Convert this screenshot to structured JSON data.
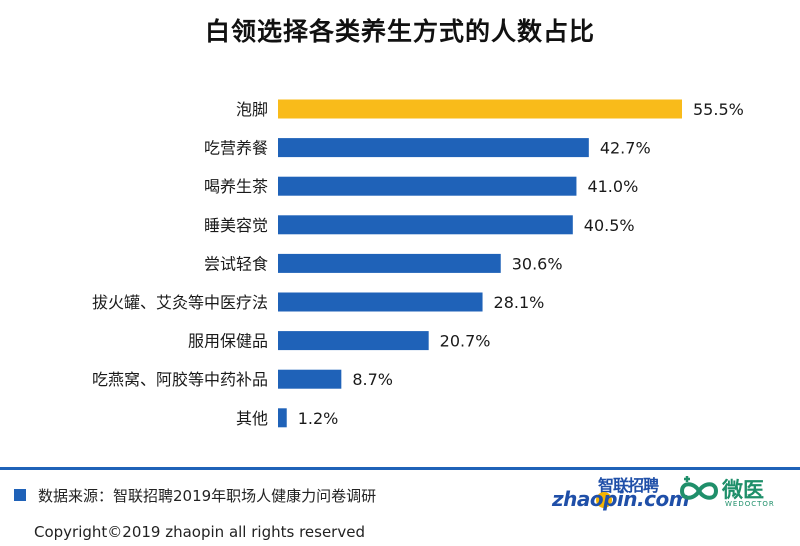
{
  "chart_data": {
    "type": "bar",
    "orientation": "horizontal",
    "title": "白领选择各类养生方式的人数占比",
    "categories": [
      "泡脚",
      "吃营养餐",
      "喝养生茶",
      "睡美容觉",
      "尝试轻食",
      "拔火罐、艾灸等中医疗法",
      "服用保健品",
      "吃燕窝、阿胶等中药补品",
      "其他"
    ],
    "values": [
      55.5,
      42.7,
      41.0,
      40.5,
      30.6,
      28.1,
      20.7,
      8.7,
      1.2
    ],
    "value_labels": [
      "55.5%",
      "42.7%",
      "41.0%",
      "40.5%",
      "30.6%",
      "28.1%",
      "20.7%",
      "8.7%",
      "1.2%"
    ],
    "highlight_index": 0,
    "colors": {
      "bar": "#1f62b8",
      "highlight": "#f9bb1a"
    },
    "xlim": [
      0,
      55.5
    ],
    "grid": false,
    "legend": "none"
  },
  "footer": {
    "source": "数据来源：智联招聘2019年职场人健康力问卷调研",
    "copyright": "Copyright©2019 zhaopin all rights reserved"
  },
  "logos": {
    "zhaopin_cn": "智联招聘",
    "zhaopin_en": "zhaopin.com",
    "weiyi_cn": "微医",
    "weiyi_en": "WEDOCTOR"
  },
  "icons": [
    "source-square-icon",
    "zhaopin-logo-icon",
    "wedoctor-logo-icon"
  ]
}
